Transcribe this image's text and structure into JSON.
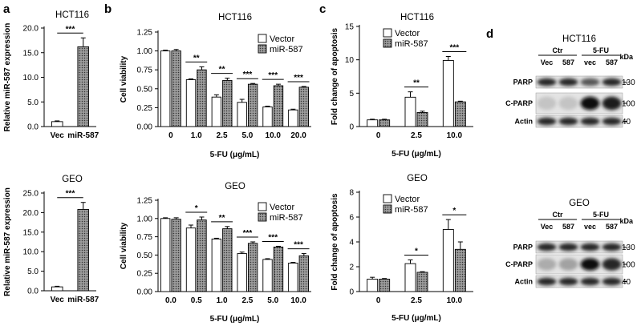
{
  "panel_letters": [
    "a",
    "b",
    "c",
    "d"
  ],
  "chart_data": [
    {
      "type": "bar",
      "panel": "a",
      "title": "HCT116",
      "categories": [
        "Vec",
        "miR-587"
      ],
      "values": [
        1.0,
        16.2
      ],
      "errors": [
        0.15,
        1.8
      ],
      "ylabel": "Relative miR-587 expression",
      "ylim": [
        0,
        20
      ],
      "yticks": [
        "0.0",
        "5.0",
        "10.0",
        "15.0",
        "20.0"
      ],
      "significance": [
        {
          "label": "***",
          "from": 0,
          "to": 1
        }
      ]
    },
    {
      "type": "bar",
      "panel": "a",
      "title": "GEO",
      "categories": [
        "Vec",
        "miR-587"
      ],
      "values": [
        1.0,
        20.8
      ],
      "errors": [
        0.15,
        1.8
      ],
      "ylabel": "Relative miR-587 expression",
      "ylim": [
        0,
        25
      ],
      "yticks": [
        "0.0",
        "5.0",
        "10.0",
        "15.0",
        "20.0",
        "25.0"
      ],
      "significance": [
        {
          "label": "***",
          "from": 0,
          "to": 1
        }
      ]
    },
    {
      "type": "bar",
      "panel": "b",
      "title": "HCT116",
      "categories": [
        "0",
        "1.0",
        "2.5",
        "5.0",
        "10.0",
        "20.0"
      ],
      "series": [
        {
          "name": "Vector",
          "values": [
            1.0,
            0.62,
            0.39,
            0.32,
            0.26,
            0.22
          ],
          "errors": [
            0.01,
            0.01,
            0.03,
            0.04,
            0.01,
            0.01
          ]
        },
        {
          "name": "miR-587",
          "values": [
            1.0,
            0.75,
            0.61,
            0.56,
            0.54,
            0.52
          ],
          "errors": [
            0.02,
            0.04,
            0.03,
            0.01,
            0.02,
            0.01
          ]
        }
      ],
      "xlabel": "5-FU (μg/mL)",
      "ylabel": "Cell viability",
      "ylim": [
        0,
        1.25
      ],
      "yticks": [
        "0.00",
        "0.25",
        "0.50",
        "0.75",
        "1.00",
        "1.25"
      ],
      "significance": [
        "**",
        "**",
        "***",
        "***",
        "***"
      ],
      "legend": "top-right"
    },
    {
      "type": "bar",
      "panel": "b",
      "title": "GEO",
      "categories": [
        "0.0",
        "0.5",
        "1.0",
        "2.5",
        "5.0",
        "10.0"
      ],
      "series": [
        {
          "name": "Vector",
          "values": [
            1.0,
            0.87,
            0.72,
            0.52,
            0.44,
            0.39
          ],
          "errors": [
            0.01,
            0.04,
            0.01,
            0.02,
            0.01,
            0.01
          ]
        },
        {
          "name": "miR-587",
          "values": [
            0.99,
            0.98,
            0.86,
            0.66,
            0.61,
            0.49
          ],
          "errors": [
            0.02,
            0.04,
            0.03,
            0.02,
            0.01,
            0.03
          ]
        }
      ],
      "xlabel": "5-FU (μg/mL)",
      "ylabel": "Cell viability",
      "ylim": [
        0,
        1.25
      ],
      "yticks": [
        "0.00",
        "0.25",
        "0.50",
        "0.75",
        "1.00",
        "1.25"
      ],
      "significance": [
        "*",
        "**",
        "***",
        "***",
        "***"
      ],
      "legend": "top-right"
    },
    {
      "type": "bar",
      "panel": "c",
      "title": "HCT116",
      "categories": [
        "0",
        "2.5",
        "10.0"
      ],
      "series": [
        {
          "name": "Vector",
          "values": [
            1.0,
            4.4,
            9.9
          ],
          "errors": [
            0.1,
            0.8,
            0.6
          ]
        },
        {
          "name": "miR-587",
          "values": [
            1.0,
            2.1,
            3.7
          ],
          "errors": [
            0.1,
            0.2,
            0.1
          ]
        }
      ],
      "xlabel": "5-FU (μg/mL)",
      "ylabel": "Fold change of apoptosis",
      "ylim": [
        0,
        15
      ],
      "yticks": [
        "0",
        "5",
        "10",
        "15"
      ],
      "significance": [
        "**",
        "***"
      ],
      "legend": "top-left"
    },
    {
      "type": "bar",
      "panel": "c",
      "title": "GEO",
      "categories": [
        "0",
        "2.5",
        "10.0"
      ],
      "series": [
        {
          "name": "Vector",
          "values": [
            1.0,
            2.25,
            5.0
          ],
          "errors": [
            0.15,
            0.3,
            0.8
          ]
        },
        {
          "name": "miR-587",
          "values": [
            1.0,
            1.55,
            3.4
          ],
          "errors": [
            0.05,
            0.05,
            0.6
          ]
        }
      ],
      "xlabel": "5-FU (μg/mL)",
      "ylabel": "Fold change of apoptosis",
      "ylim": [
        0,
        8
      ],
      "yticks": [
        "0",
        "2",
        "4",
        "6",
        "8"
      ],
      "significance": [
        "*",
        "*"
      ],
      "legend": "top-left"
    }
  ],
  "western_blots": [
    {
      "title": "HCT116",
      "groups": [
        "Ctr",
        "5-FU"
      ],
      "lanes": [
        "Vec",
        "587",
        "vec",
        "587"
      ],
      "kda_label": "kDa",
      "rows": [
        {
          "label": "PARP",
          "marker": "130",
          "intensities": [
            0.85,
            0.85,
            0.6,
            0.85
          ]
        },
        {
          "label": "C-PARP",
          "marker": "100",
          "intensities": [
            0.02,
            0.02,
            1.0,
            0.9
          ]
        },
        {
          "label": "Actin",
          "marker": "40",
          "intensities": [
            0.85,
            0.85,
            0.85,
            0.85
          ]
        }
      ]
    },
    {
      "title": "GEO",
      "groups": [
        "Ctr",
        "5-FU"
      ],
      "lanes": [
        "Vec",
        "587",
        "vec",
        "587"
      ],
      "kda_label": "kDa",
      "rows": [
        {
          "label": "PARP",
          "marker": "130",
          "intensities": [
            0.85,
            0.85,
            0.85,
            0.85
          ]
        },
        {
          "label": "C-PARP",
          "marker": "100",
          "intensities": [
            0.15,
            0.2,
            1.0,
            0.85
          ]
        },
        {
          "label": "Actin",
          "marker": "40",
          "intensities": [
            0.85,
            0.85,
            0.85,
            0.85
          ]
        }
      ]
    }
  ]
}
